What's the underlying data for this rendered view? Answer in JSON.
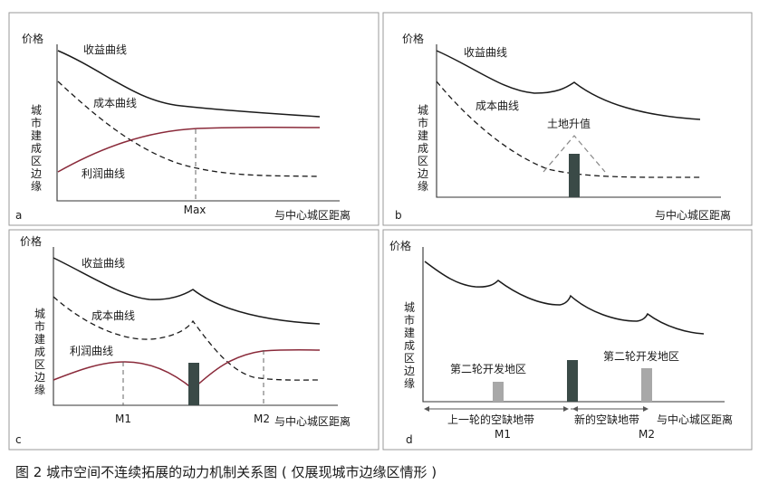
{
  "panels": {
    "a": {
      "letter": "a",
      "price_label": "价格",
      "y_label": [
        "城",
        "市",
        "建",
        "成",
        "区",
        "边",
        "缘"
      ],
      "x_label": "与中心城区距离",
      "revenue_label": "收益曲线",
      "cost_label": "成本曲线",
      "profit_label": "利润曲线",
      "tick_max": "Max"
    },
    "b": {
      "letter": "b",
      "price_label": "价格",
      "y_label": [
        "城",
        "市",
        "建",
        "成",
        "区",
        "边",
        "缘"
      ],
      "x_label": "与中心城区距离",
      "revenue_label": "收益曲线",
      "cost_label": "成本曲线",
      "appreciation_label": "土地升值",
      "bar_color": "#3a4a47"
    },
    "c": {
      "letter": "c",
      "price_label": "价格",
      "y_label": [
        "城",
        "市",
        "建",
        "成",
        "区",
        "边",
        "缘"
      ],
      "x_label": "与中心城区距离",
      "revenue_label": "收益曲线",
      "cost_label": "成本曲线",
      "profit_label": "利润曲线",
      "tick_m1": "M1",
      "tick_m2": "M2",
      "bar_color": "#3a4a47"
    },
    "d": {
      "letter": "d",
      "price_label": "价格",
      "y_label": [
        "城",
        "市",
        "建",
        "成",
        "区",
        "边",
        "缘"
      ],
      "x_label": "与中心城区距离",
      "second_round_left": "第二轮开发地区",
      "second_round_right": "第二轮开发地区",
      "gap_zone_previous": "上一轮的空缺地带",
      "gap_zone_new": "新的空缺地带",
      "tick_m1": "M1",
      "tick_m2": "M2",
      "dark_bar_color": "#3a4a47",
      "light_bar_color": "#a8a8a8"
    }
  },
  "caption": "图 2  城市空间不连续拓展的动力机制关系图 ( 仅展现城市边缘区情形 )",
  "colors": {
    "profit_curve": "#8a2a3a",
    "frame": "#9a9a9a"
  }
}
